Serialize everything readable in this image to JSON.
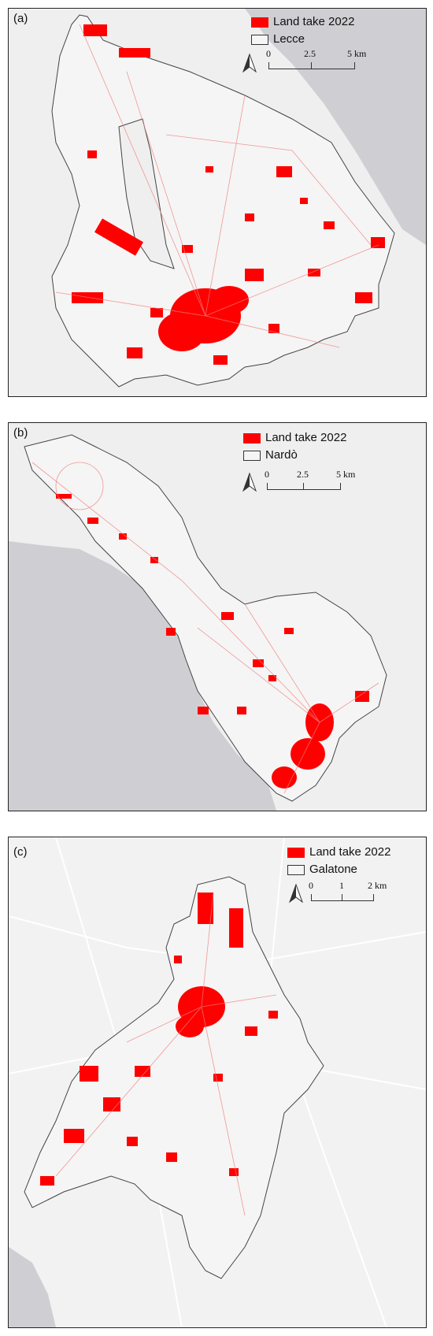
{
  "panels": [
    {
      "label": "(a)",
      "legend": {
        "landtake": "Land take 2022",
        "boundary": "Lecce"
      },
      "scale": {
        "ticks": [
          "0",
          "2.5",
          "5 km"
        ]
      }
    },
    {
      "label": "(b)",
      "legend": {
        "landtake": "Land take 2022",
        "boundary": "Nardò"
      },
      "scale": {
        "ticks": [
          "0",
          "2.5",
          "5 km"
        ]
      }
    },
    {
      "label": "(c)",
      "legend": {
        "landtake": "Land take 2022",
        "boundary": "Galatone"
      },
      "scale": {
        "ticks": [
          "0",
          "1",
          "2 km"
        ]
      }
    }
  ],
  "colors": {
    "landtake": "#ff0000",
    "municipality_fill": "#f4f4f4",
    "sea": "#cfcfd3",
    "background": "#f2f2f2"
  },
  "icons": {
    "north_arrow": "north-arrow-icon"
  }
}
